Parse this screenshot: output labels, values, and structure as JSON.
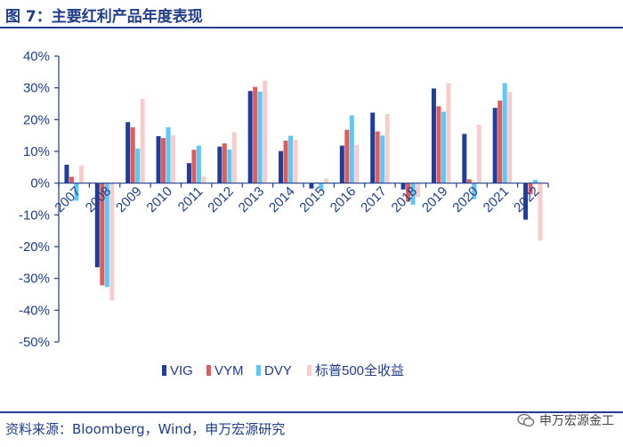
{
  "header": {
    "title": "图 7：主要红利产品年度表现"
  },
  "footer": {
    "source": "资料来源：Bloomberg，Wind，申万宏源研究",
    "watermark": "申万宏源金工"
  },
  "colors": {
    "VIG": "#1f3d9c",
    "VYM": "#e05c5c",
    "DVY": "#5bc8f5",
    "SP500": "#f7cccc",
    "axis": "#1f3d8c"
  },
  "chart_data": {
    "type": "bar",
    "title": "",
    "xlabel": "",
    "ylabel": "",
    "ylim": [
      -0.5,
      0.4
    ],
    "yticks": [
      0.4,
      0.3,
      0.2,
      0.1,
      0,
      -0.1,
      -0.2,
      -0.3,
      -0.4,
      -0.5
    ],
    "ytick_labels": [
      "40%",
      "30%",
      "20%",
      "10%",
      "0%",
      "-10%",
      "-20%",
      "-30%",
      "-40%",
      "-50%"
    ],
    "categories": [
      "2007",
      "2008",
      "2009",
      "2010",
      "2011",
      "2012",
      "2013",
      "2014",
      "2015",
      "2016",
      "2017",
      "2018",
      "2019",
      "2020",
      "2021",
      "2022"
    ],
    "legend_position": "bottom",
    "series": [
      {
        "name": "VIG",
        "key": "VIG",
        "values": [
          0.058,
          -0.265,
          0.192,
          0.148,
          0.063,
          0.115,
          0.29,
          0.101,
          -0.017,
          0.118,
          0.222,
          -0.02,
          0.298,
          0.155,
          0.237,
          -0.115
        ]
      },
      {
        "name": "VYM",
        "key": "VYM",
        "values": [
          0.02,
          -0.322,
          0.176,
          0.142,
          0.105,
          0.125,
          0.303,
          0.134,
          0.002,
          0.168,
          0.163,
          -0.058,
          0.242,
          0.012,
          0.26,
          -0.035
        ]
      },
      {
        "name": "DVY",
        "key": "DVY",
        "values": [
          -0.055,
          -0.327,
          0.109,
          0.176,
          0.118,
          0.106,
          0.288,
          0.149,
          -0.02,
          0.213,
          0.15,
          -0.068,
          0.225,
          -0.05,
          0.315,
          0.01
        ]
      },
      {
        "name": "标普500全收益",
        "key": "SP500",
        "values": [
          0.055,
          -0.37,
          0.265,
          0.151,
          0.021,
          0.16,
          0.323,
          0.137,
          0.014,
          0.12,
          0.218,
          -0.044,
          0.315,
          0.184,
          0.287,
          -0.181
        ]
      }
    ]
  }
}
